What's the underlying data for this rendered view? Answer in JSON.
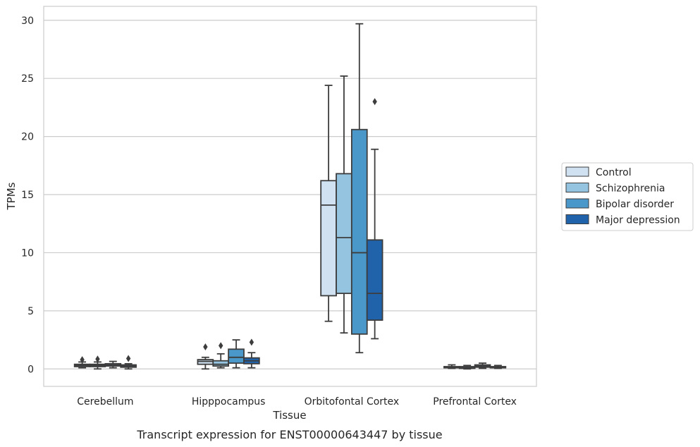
{
  "caption": "Transcript expression for ENST00000643447 by tissue",
  "chart_data": {
    "type": "box",
    "xlabel": "Tissue",
    "ylabel": "TPMs",
    "ylim": [
      -1.5,
      31.2
    ],
    "yticks": [
      0,
      5,
      10,
      15,
      20,
      25,
      30
    ],
    "grid": "horizontal",
    "legend_position": "right",
    "categories": [
      "Cerebellum",
      "Hipppocampus",
      "Orbitofontal Cortex",
      "Prefrontal Cortex"
    ],
    "series": [
      {
        "name": "Control",
        "color": "#d0e1f2",
        "boxes": [
          {
            "whisker_low": 0.1,
            "q1": 0.2,
            "median": 0.3,
            "q3": 0.4,
            "whisker_high": 0.6,
            "outliers": [
              0.8
            ]
          },
          {
            "whisker_low": 0.0,
            "q1": 0.4,
            "median": 0.65,
            "q3": 0.8,
            "whisker_high": 1.0,
            "outliers": [
              1.9
            ]
          },
          {
            "whisker_low": 4.1,
            "q1": 6.3,
            "median": 14.1,
            "q3": 16.2,
            "whisker_high": 24.4,
            "outliers": []
          },
          {
            "whisker_low": 0.05,
            "q1": 0.1,
            "median": 0.15,
            "q3": 0.2,
            "whisker_high": 0.35,
            "outliers": []
          }
        ]
      },
      {
        "name": "Schizophrenia",
        "color": "#94c4df",
        "boxes": [
          {
            "whisker_low": 0.0,
            "q1": 0.2,
            "median": 0.3,
            "q3": 0.4,
            "whisker_high": 0.6,
            "outliers": [
              0.85
            ]
          },
          {
            "whisker_low": 0.1,
            "q1": 0.25,
            "median": 0.4,
            "q3": 0.7,
            "whisker_high": 1.3,
            "outliers": [
              2.0
            ]
          },
          {
            "whisker_low": 3.1,
            "q1": 6.5,
            "median": 11.3,
            "q3": 16.8,
            "whisker_high": 25.2,
            "outliers": []
          },
          {
            "whisker_low": 0.0,
            "q1": 0.05,
            "median": 0.1,
            "q3": 0.2,
            "whisker_high": 0.3,
            "outliers": []
          }
        ]
      },
      {
        "name": "Bipolar disorder",
        "color": "#4a98c9",
        "boxes": [
          {
            "whisker_low": 0.1,
            "q1": 0.25,
            "median": 0.35,
            "q3": 0.45,
            "whisker_high": 0.65,
            "outliers": []
          },
          {
            "whisker_low": 0.1,
            "q1": 0.5,
            "median": 1.0,
            "q3": 1.7,
            "whisker_high": 2.5,
            "outliers": []
          },
          {
            "whisker_low": 1.4,
            "q1": 3.0,
            "median": 10.0,
            "q3": 20.6,
            "whisker_high": 29.7,
            "outliers": []
          },
          {
            "whisker_low": 0.05,
            "q1": 0.15,
            "median": 0.25,
            "q3": 0.35,
            "whisker_high": 0.5,
            "outliers": []
          }
        ]
      },
      {
        "name": "Major depression",
        "color": "#2163aa",
        "boxes": [
          {
            "whisker_low": 0.0,
            "q1": 0.15,
            "median": 0.25,
            "q3": 0.35,
            "whisker_high": 0.45,
            "outliers": [
              0.9
            ]
          },
          {
            "whisker_low": 0.1,
            "q1": 0.45,
            "median": 0.7,
            "q3": 0.95,
            "whisker_high": 1.4,
            "outliers": [
              2.3
            ]
          },
          {
            "whisker_low": 2.6,
            "q1": 4.2,
            "median": 6.5,
            "q3": 11.1,
            "whisker_high": 18.9,
            "outliers": [
              23.0
            ]
          },
          {
            "whisker_low": 0.05,
            "q1": 0.1,
            "median": 0.15,
            "q3": 0.2,
            "whisker_high": 0.3,
            "outliers": []
          }
        ]
      }
    ]
  }
}
